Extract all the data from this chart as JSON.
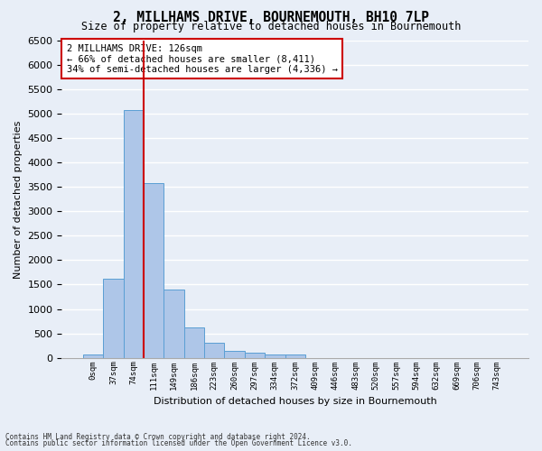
{
  "title": "2, MILLHAMS DRIVE, BOURNEMOUTH, BH10 7LP",
  "subtitle": "Size of property relative to detached houses in Bournemouth",
  "xlabel": "Distribution of detached houses by size in Bournemouth",
  "ylabel": "Number of detached properties",
  "bar_values": [
    75,
    1625,
    5075,
    3575,
    1400,
    625,
    300,
    150,
    100,
    75,
    75,
    0,
    0,
    0,
    0,
    0,
    0,
    0,
    0,
    0,
    0
  ],
  "bar_labels": [
    "0sqm",
    "37sqm",
    "74sqm",
    "111sqm",
    "149sqm",
    "186sqm",
    "223sqm",
    "260sqm",
    "297sqm",
    "334sqm",
    "372sqm",
    "409sqm",
    "446sqm",
    "483sqm",
    "520sqm",
    "557sqm",
    "594sqm",
    "632sqm",
    "669sqm",
    "706sqm",
    "743sqm"
  ],
  "bar_color": "#aec6e8",
  "bar_edge_color": "#5a9fd4",
  "vline_x": 2.5,
  "vline_color": "#cc0000",
  "annotation_text": "2 MILLHAMS DRIVE: 126sqm\n← 66% of detached houses are smaller (8,411)\n34% of semi-detached houses are larger (4,336) →",
  "annotation_box_color": "#ffffff",
  "annotation_box_edge_color": "#cc0000",
  "ylim": [
    0,
    6500
  ],
  "yticks": [
    0,
    500,
    1000,
    1500,
    2000,
    2500,
    3000,
    3500,
    4000,
    4500,
    5000,
    5500,
    6000,
    6500
  ],
  "footnote1": "Contains HM Land Registry data © Crown copyright and database right 2024.",
  "footnote2": "Contains public sector information licensed under the Open Government Licence v3.0.",
  "bg_color": "#e8eef7",
  "grid_color": "#ffffff"
}
